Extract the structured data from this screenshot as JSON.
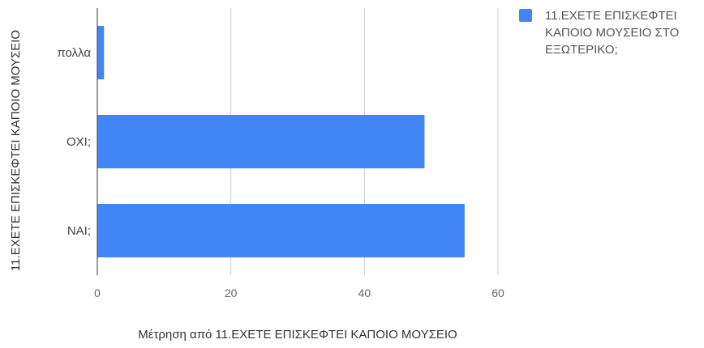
{
  "chart_data": {
    "type": "bar",
    "orientation": "horizontal",
    "categories": [
      "πολλα",
      "ΟΧΙ;",
      "ΝΑΙ;"
    ],
    "series": [
      {
        "name": "11.ΕΧΕΤΕ ΕΠΙΣΚΕΦΤΕΙ ΚΑΠΟΙΟ ΜΟΥΣΕΙΟ ΣΤΟ ΕΞΩΤΕΡΙΚΟ;",
        "legend_lines": [
          "11.ΕΧΕΤΕ ΕΠΙΣΚΕΦΤΕΙ",
          "ΚΑΠΟΙΟ ΜΟΥΣΕΙΟ ΣΤΟ",
          "ΕΞΩΤΕΡΙΚΟ;"
        ],
        "values": [
          1,
          49,
          55
        ],
        "color": "#4285f4"
      }
    ],
    "xlabel": "Μέτρηση από 11.ΕΧΕΤΕ ΕΠΙΣΚΕΦΤΕΙ ΚΑΠΟΙΟ ΜΟΥΣΕΙΟ",
    "ylabel": "11.ΕΧΕΤΕ ΕΠΙΣΚΕΦΤΕΙ ΚΑΠΟΙΟ ΜΟΥΣΕΙΟ",
    "xlim": [
      0,
      60
    ],
    "xticks": [
      0,
      20,
      40,
      60
    ],
    "grid": true,
    "legend_position": "right"
  }
}
